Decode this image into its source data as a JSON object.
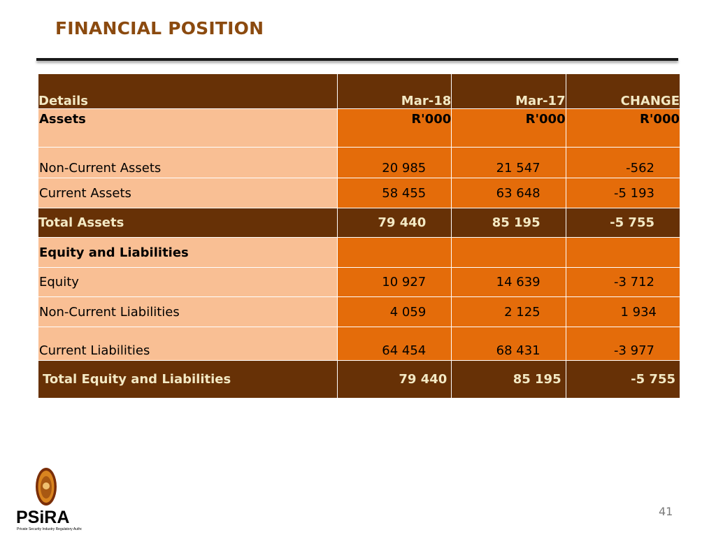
{
  "slide": {
    "title": "FINANCIAL POSITION",
    "page_number": "41"
  },
  "table": {
    "header": [
      "Details",
      "Mar-18",
      "Mar-17",
      "CHANGE"
    ],
    "units_row": [
      "Assets",
      "R'000",
      "R'000",
      "R'000"
    ],
    "rows": [
      {
        "label": "Non-Current Assets",
        "mar18": "20 985",
        "mar17": "21 547",
        "change": "-562"
      },
      {
        "label": "Current Assets",
        "mar18": "58 455",
        "mar17": "63 648",
        "change": "-5 193"
      },
      {
        "label": "Total Assets",
        "mar18": "79 440",
        "mar17": "85 195",
        "change": "-5 755"
      },
      {
        "label": "Equity and Liabilities",
        "mar18": "",
        "mar17": "",
        "change": ""
      },
      {
        "label": "Equity",
        "mar18": "10 927",
        "mar17": "14 639",
        "change": "-3 712"
      },
      {
        "label": "Non-Current Liabilities",
        "mar18": "4 059",
        "mar17": "2 125",
        "change": "1 934"
      },
      {
        "label": "Current Liabilities",
        "mar18": "64 454",
        "mar17": "68 431",
        "change": "-3 977"
      },
      {
        "label": "Total Equity and Liabilities",
        "mar18": "79 440",
        "mar17": "85 195",
        "change": "-5 755"
      }
    ]
  },
  "logo": {
    "name": "PSiRA",
    "tagline": "Private Security Industry Regulatory Authority",
    "icon": "lion-crest-icon"
  },
  "colors": {
    "title": "#8b4a0f",
    "dark_row": "#673106",
    "orange_cell": "#e46c0a",
    "peach_cell": "#f9bf94",
    "dark_text": "#f3e9c4"
  }
}
